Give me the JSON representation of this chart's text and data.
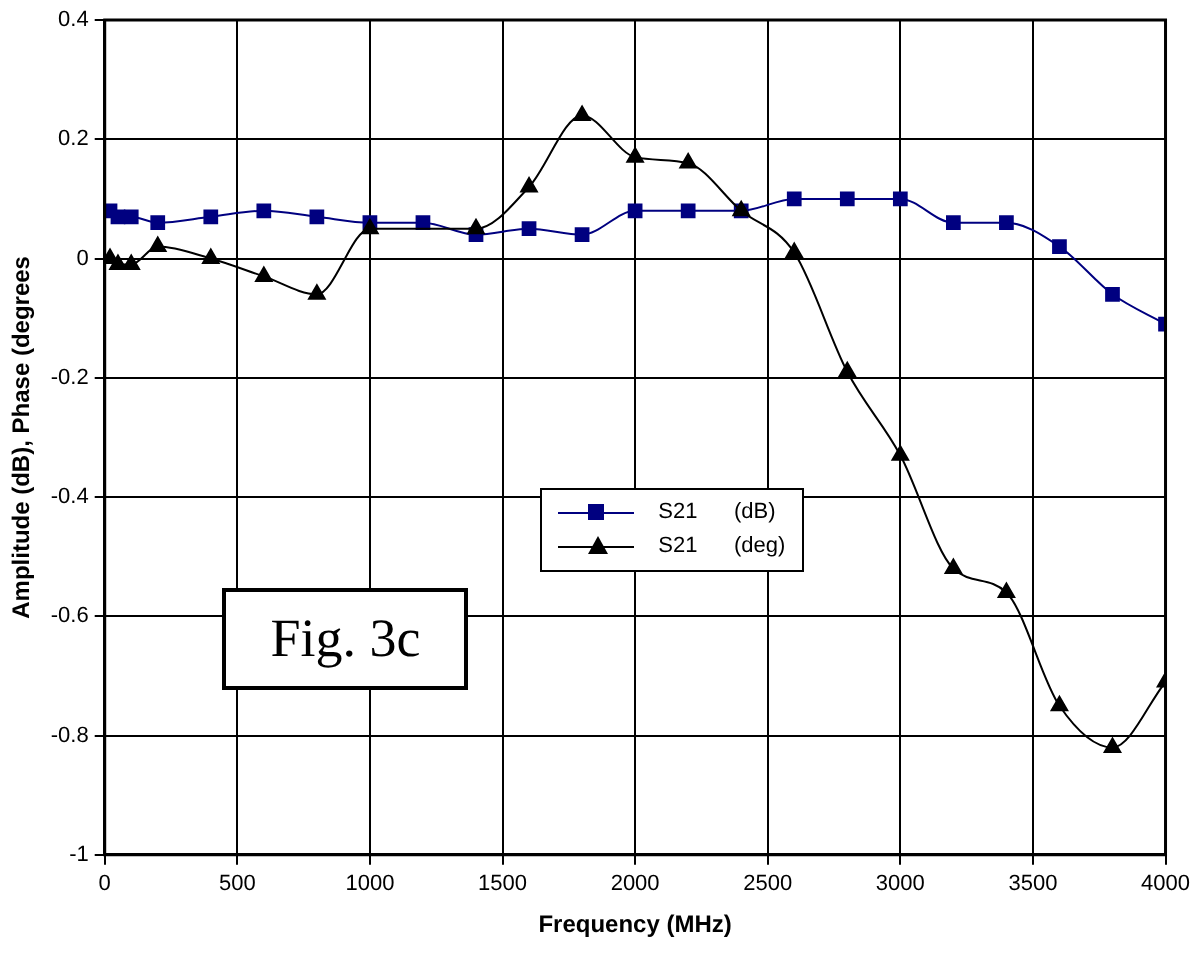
{
  "chart_data": {
    "type": "line",
    "xlabel": "Frequency (MHz)",
    "ylabel": "Amplitude (dB), Phase (degrees",
    "annotations": [
      "Fig. 3c"
    ],
    "xlim": [
      0,
      4000
    ],
    "xticks": [
      0,
      500,
      1000,
      1500,
      2000,
      2500,
      3000,
      3500,
      4000
    ],
    "ylim": [
      -1,
      0.4
    ],
    "yticks": [
      -1,
      -0.8,
      -0.6,
      -0.4,
      -0.2,
      0,
      0.2,
      0.4
    ],
    "grid": true,
    "legend": "center",
    "line_style": "solid",
    "series": [
      {
        "name": "S21      (dB)",
        "color": "#000080",
        "marker": "square",
        "x": [
          20,
          50,
          100,
          200,
          400,
          600,
          800,
          1000,
          1200,
          1400,
          1600,
          1800,
          2000,
          2200,
          2400,
          2600,
          2800,
          3000,
          3200,
          3400,
          3600,
          3800,
          4000
        ],
        "values": [
          0.08,
          0.07,
          0.07,
          0.06,
          0.07,
          0.08,
          0.07,
          0.06,
          0.06,
          0.04,
          0.05,
          0.04,
          0.08,
          0.08,
          0.08,
          0.1,
          0.1,
          0.1,
          0.06,
          0.06,
          0.02,
          -0.06,
          -0.11
        ]
      },
      {
        "name": "S21      (deg)",
        "color": "#000000",
        "marker": "triangle",
        "x": [
          20,
          50,
          100,
          200,
          400,
          600,
          800,
          1000,
          1400,
          1600,
          1800,
          2000,
          2200,
          2400,
          2600,
          2800,
          3000,
          3200,
          3400,
          3600,
          3800,
          4000
        ],
        "values": [
          0,
          -0.01,
          -0.01,
          0.02,
          0,
          -0.03,
          -0.06,
          0.05,
          0.05,
          0.12,
          0.24,
          0.17,
          0.16,
          0.08,
          0.01,
          -0.19,
          -0.33,
          -0.52,
          -0.56,
          -0.75,
          -0.82,
          -0.71
        ]
      }
    ]
  }
}
